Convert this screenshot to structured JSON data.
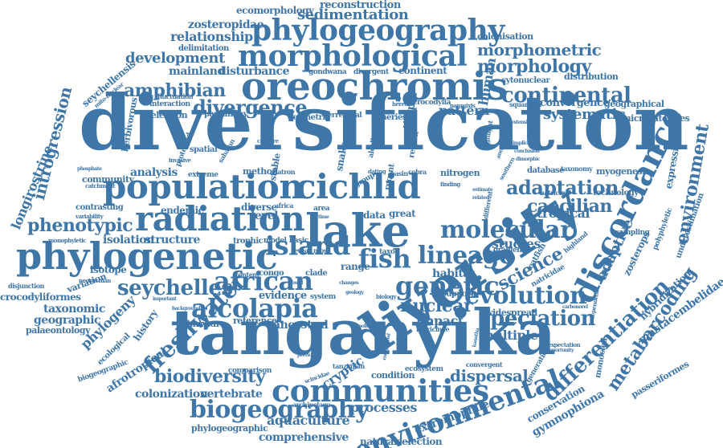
{
  "cloud": {
    "color": "#3f76a8",
    "words": {
      "diversification": "diversification",
      "tanganyika": "tanganyika",
      "diversity": "diversity",
      "oreochromis": "oreochromis",
      "phylogenetic": "phylogenetic",
      "population": "population",
      "cichlid": "cichlid",
      "radiation": "radiation",
      "lake": "lake",
      "discordance": "discordance",
      "communities": "communities",
      "phylogeography": "phylogeography",
      "morphological": "morphological",
      "environmental": "environmental",
      "alcolapia": "alcolapia",
      "african": "african",
      "island": "island",
      "fish": "fish",
      "genetic": "genetic",
      "lineage": "lineage",
      "evolution": "evolution",
      "molecular": "molecular",
      "adaptation": "adaptation",
      "speciation": "speciation",
      "biogeography": "biogeography",
      "freshwater": "freshwater",
      "seychelles": "seychelles",
      "differentiation": "differentiation",
      "metabarcoding": "metabarcoding",
      "continental": "continental",
      "divergence": "divergence",
      "morphology": "morphology",
      "morphometric": "morphometric",
      "amphibian": "amphibian",
      "development": "development",
      "sedimentation": "sedimentation",
      "relationship": "relationship",
      "zosteropidae": "zosteropidae",
      "ecomorphology": "ecomorphology",
      "reconstruction": "reconstruction",
      "mainland": "mainland",
      "disturbance": "disturbance",
      "continent": "continent",
      "colonisation": "colonisation",
      "delimitation": "delimitation",
      "parsimony": "parsimony",
      "seychellensis": "seychellensis",
      "gondwana": "gondwana",
      "divergent": "divergent",
      "distribution": "distribution",
      "cytonuclear": "cytonuclear",
      "introgression": "introgression",
      "longirostrine": "longirostrine",
      "phenotypic": "phenotypic",
      "caecilian": "caecilian",
      "systematic": "systematic",
      "convergence": "convergence",
      "geographical": "geographical",
      "microsatellites": "microsatellites",
      "environment": "environment",
      "adaptive": "adaptive",
      "science": "science",
      "studies": "studies",
      "tropical": "tropical",
      "nuclear": "nuclear",
      "impact": "impact",
      "multiple": "multiple",
      "habitat": "habitat",
      "isotope": "isotope",
      "variation": "variation",
      "taxonomic": "taxonomic",
      "geographic": "geographic",
      "crocodyliformes": "crocodyliformes",
      "palaeontology": "palaeontology",
      "phylogeny": "phylogeny",
      "afrotropical": "afrotropical",
      "biodiversity": "biodiversity",
      "colonization": "colonization",
      "vertebrate": "vertebrate",
      "aquaculture": "aquaculture",
      "comprehensive": "comprehensive",
      "phylogeographic": "phylogeographic",
      "processes": "processes",
      "dispersal": "dispersal",
      "extremophile": "extremophile",
      "naturalselection": "naturalselection",
      "cryptic": "cryptic",
      "gymnophiona": "gymnophiona",
      "conservation": "conservation",
      "mastacembelidae": "mastacembelidae",
      "hybridization": "hybridization",
      "passeriformes": "passeriformes",
      "analysis": "analysis",
      "endemic": "endemic",
      "structure": "structure",
      "isolation": "isolation",
      "trophic": "trophic",
      "model": "model",
      "basic": "basic",
      "range": "range",
      "congo": "congo",
      "clade": "clade",
      "reference": "reference",
      "admixture": "admixture",
      "ancestral": "ancestral",
      "evidence": "evidence",
      "system": "system",
      "support": "support",
      "widespread": "widespread",
      "condition": "condition",
      "ecosystem": "ecosystem",
      "snake": "snake",
      "pattern": "pattern",
      "tilapia": "tilapia",
      "human": "human",
      "geometric": "geometric",
      "terrestrial": "terrestrial",
      "fisheries": "fisheries",
      "crocodylia": "crocodylia",
      "selection": "selection",
      "interaction": "interaction",
      "fluctuation": "fluctuation",
      "herbivorous": "herbivorous",
      "community": "community",
      "method": "method",
      "stable": "stable",
      "natron": "natron",
      "nitrogen": "nitrogen",
      "expression": "expression",
      "myogenesis": "myogenesis",
      "technology": "technology",
      "database": "database",
      "taxonomy": "taxonomy",
      "natricine": "natricine",
      "diverse": "diverse",
      "level": "level",
      "spatial": "spatial",
      "extreme": "extreme",
      "contrasting": "contrasting",
      "variability": "variability",
      "monophyletic": "monophyletic",
      "disjunction": "disjunction",
      "ecological": "ecological",
      "history": "history",
      "biogeographic": "biogeographic",
      "tanzanian": "tanzanian",
      "archipelago": "archipelago",
      "comparison": "comparison",
      "convergent": "convergent",
      "generation": "generation",
      "monocled": "monocled",
      "squamata": "squamata",
      "panmixis": "panmixis",
      "heredity": "heredity",
      "alcalica": "alcalica",
      "capture": "capture",
      "region": "region",
      "recent": "recent",
      "data": "data",
      "great": "great",
      "area": "area",
      "africa": "africa",
      "taxon": "taxon",
      "most": "most",
      "reveal": "reveal",
      "natricidae": "natricidae",
      "gradient": "gradient",
      "sampling": "sampling",
      "highland": "highland",
      "zosterops": "zosterops",
      "polyphyletic": "polyphyletic",
      "underestimation": "underestimation",
      "basin": "basin",
      "dating": "dating",
      "cobra": "cobra",
      "chameleon": "chameleon",
      "catfish": "catfish",
      "cichlidae": "cichlidae",
      "mitonuclear": "mito-nuclear",
      "fisherman": "fishermen",
      "neosuchian": "neosuchian",
      "invasive": "invasive",
      "protected": "protected",
      "geology": "geology",
      "biology": "biology",
      "pollution": "pollution",
      "exceptional": "exceptional",
      "natricinae": "natricinae",
      "scincidae": "scincidae",
      "previous": "previous",
      "expectation": "expectation",
      "opportunity": "opportunity",
      "independent": "independent",
      "saharan": "saharan",
      "phosphate": "phosphate",
      "catchment": "catchment",
      "fossil": "fossil",
      "background": "background",
      "important": "important",
      "content": "content",
      "estimate": "estimate",
      "related": "related",
      "different": "different",
      "finding": "finding",
      "group": "group",
      "grassland": "grassland",
      "evolutionary": "evolutionary",
      "southern": "southern",
      "anonymous": "anonymous",
      "highlight": "highlight",
      "extensive": "extensive",
      "implication": "implication",
      "conclusion": "conclusion",
      "dimorphic": "dimorphic",
      "kanatha": "kanatha",
      "carbonorel": "carbonorel",
      "changes": "changes",
      "time": "time",
      "lakes": "lakes",
      "zoology": "zoology",
      "subspecies": "subspecies"
    }
  }
}
